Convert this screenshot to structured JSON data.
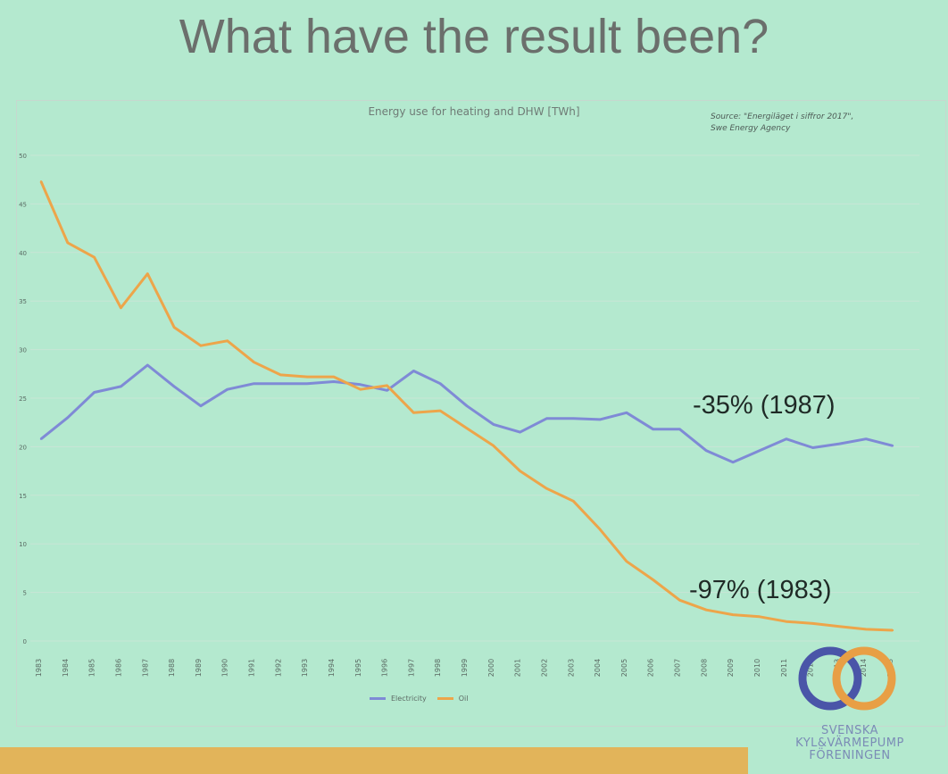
{
  "slide": {
    "title": "What have the result been?",
    "source_line1": "Source: \"Energiläget i siffror 2017\",",
    "source_line2": "Swe Energy Agency",
    "annotation_electricity": "-35% (1987)",
    "annotation_oil": "-97% (1983)",
    "logo_line1": "SVENSKA",
    "logo_line2": "KYL&VÄRMEPUMP",
    "logo_line3": "FÖRENINGEN"
  },
  "colors": {
    "background": "#b4e9cf",
    "electricity": "#7f8ad6",
    "oil": "#eda54a",
    "grid": "#c8e6d6",
    "bottom_bar": "#e2b45a",
    "logo_blue": "#4a55a8",
    "logo_orange": "#e89f45"
  },
  "chart_data": {
    "type": "line",
    "title": "Energy use for heating and DHW [TWh]",
    "xlabel": "",
    "ylabel": "",
    "ylim": [
      0,
      50
    ],
    "yticks": [
      0,
      5,
      10,
      15,
      20,
      25,
      30,
      35,
      40,
      45,
      50
    ],
    "grid": true,
    "legend_position": "bottom-center",
    "x": [
      "1983",
      "1984",
      "1985",
      "1986",
      "1987",
      "1988",
      "1989",
      "1990",
      "1991",
      "1992",
      "1993",
      "1994",
      "1995",
      "1996",
      "1997",
      "1998",
      "1999",
      "2000",
      "2001",
      "2002",
      "2003",
      "2004",
      "2005",
      "2006",
      "2007",
      "2008",
      "2009",
      "2010",
      "2011",
      "2012",
      "2013",
      "2014",
      "2015"
    ],
    "series": [
      {
        "name": "Electricity",
        "color": "#7f8ad6",
        "values": [
          20.8,
          23.0,
          25.6,
          26.2,
          28.4,
          26.2,
          24.2,
          25.9,
          26.5,
          26.5,
          26.5,
          26.7,
          26.4,
          25.8,
          27.8,
          26.5,
          24.2,
          22.3,
          21.5,
          22.9,
          22.9,
          22.8,
          23.5,
          21.8,
          21.8,
          19.6,
          18.4,
          19.6,
          20.8,
          19.9,
          20.3,
          20.8,
          20.1
        ]
      },
      {
        "name": "Oil",
        "color": "#eda54a",
        "values": [
          47.3,
          41.0,
          39.5,
          34.3,
          37.8,
          32.3,
          30.4,
          30.9,
          28.7,
          27.4,
          27.2,
          27.2,
          25.9,
          26.3,
          23.5,
          23.7,
          21.9,
          20.1,
          17.5,
          15.7,
          14.4,
          11.5,
          8.2,
          6.3,
          4.2,
          3.2,
          2.7,
          2.5,
          2.0,
          1.8,
          1.5,
          1.2,
          1.1
        ]
      }
    ]
  }
}
